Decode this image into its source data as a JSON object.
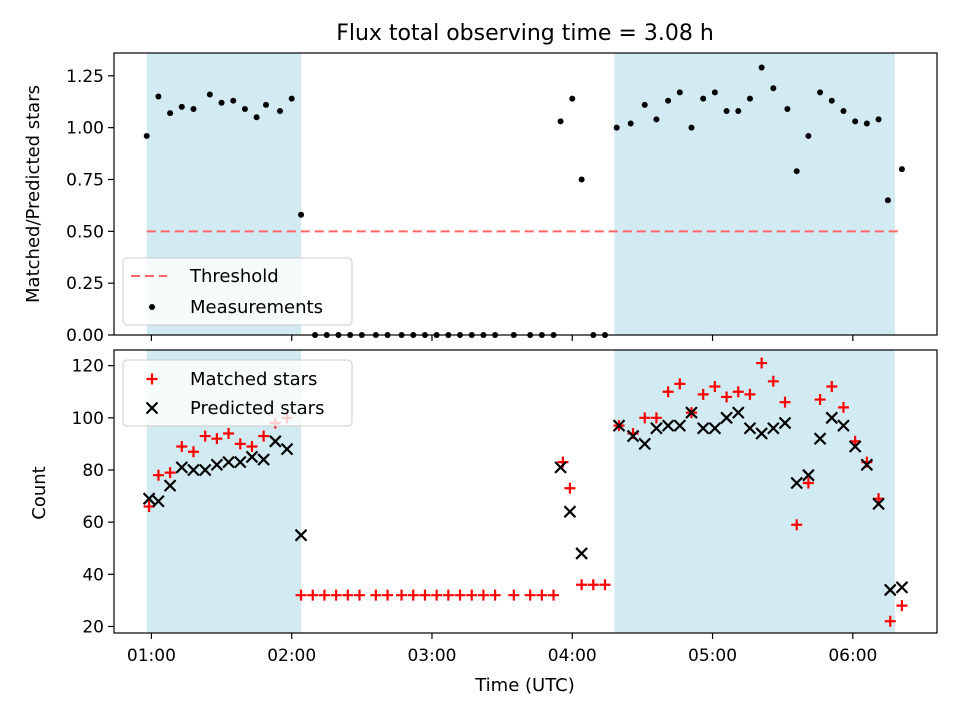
{
  "chart_data": [
    {
      "type": "scatter",
      "title": "Flux total observing time = 3.08 h",
      "xlabel": "",
      "ylabel": "Matched/Predicted stars",
      "xlim": [
        "00:44",
        "06:36"
      ],
      "ylim": [
        0,
        1.36
      ],
      "yticks": [
        0.0,
        0.25,
        0.5,
        0.75,
        1.0,
        1.25
      ],
      "ytick_labels": [
        "0.00",
        "0.25",
        "0.50",
        "0.75",
        "1.00",
        "1.25"
      ],
      "grid": false,
      "legend_position": "lower-left",
      "shaded_regions": [
        {
          "start": "00:58",
          "end": "02:04",
          "color": "#add8e6"
        },
        {
          "start": "04:18",
          "end": "06:18",
          "color": "#add8e6"
        }
      ],
      "threshold": {
        "name": "Threshold",
        "value": 0.5,
        "color": "#ff6666"
      },
      "series": [
        {
          "name": "Measurements",
          "color": "#000000",
          "points": [
            [
              "00:58",
              0.96
            ],
            [
              "01:03",
              1.15
            ],
            [
              "01:08",
              1.07
            ],
            [
              "01:13",
              1.1
            ],
            [
              "01:18",
              1.09
            ],
            [
              "01:25",
              1.16
            ],
            [
              "01:30",
              1.12
            ],
            [
              "01:35",
              1.13
            ],
            [
              "01:40",
              1.09
            ],
            [
              "01:45",
              1.05
            ],
            [
              "01:49",
              1.11
            ],
            [
              "01:55",
              1.08
            ],
            [
              "02:00",
              1.14
            ],
            [
              "02:04",
              0.58
            ],
            [
              "02:10",
              0.0
            ],
            [
              "02:15",
              0.0
            ],
            [
              "02:20",
              0.0
            ],
            [
              "02:25",
              0.0
            ],
            [
              "02:30",
              0.0
            ],
            [
              "02:36",
              0.0
            ],
            [
              "02:41",
              0.0
            ],
            [
              "02:47",
              0.0
            ],
            [
              "02:52",
              0.0
            ],
            [
              "02:57",
              0.0
            ],
            [
              "03:02",
              0.0
            ],
            [
              "03:07",
              0.0
            ],
            [
              "03:12",
              0.0
            ],
            [
              "03:17",
              0.0
            ],
            [
              "03:22",
              0.0
            ],
            [
              "03:27",
              0.0
            ],
            [
              "03:35",
              0.0
            ],
            [
              "03:42",
              0.0
            ],
            [
              "03:47",
              0.0
            ],
            [
              "03:52",
              0.0
            ],
            [
              "03:55",
              1.03
            ],
            [
              "04:00",
              1.14
            ],
            [
              "04:04",
              0.75
            ],
            [
              "04:09",
              0.0
            ],
            [
              "04:14",
              0.0
            ],
            [
              "04:19",
              1.0
            ],
            [
              "04:25",
              1.02
            ],
            [
              "04:31",
              1.11
            ],
            [
              "04:36",
              1.04
            ],
            [
              "04:41",
              1.13
            ],
            [
              "04:46",
              1.17
            ],
            [
              "04:51",
              1.0
            ],
            [
              "04:56",
              1.14
            ],
            [
              "05:01",
              1.17
            ],
            [
              "05:06",
              1.08
            ],
            [
              "05:11",
              1.08
            ],
            [
              "05:16",
              1.14
            ],
            [
              "05:21",
              1.29
            ],
            [
              "05:26",
              1.19
            ],
            [
              "05:32",
              1.09
            ],
            [
              "05:36",
              0.79
            ],
            [
              "05:41",
              0.96
            ],
            [
              "05:46",
              1.17
            ],
            [
              "05:51",
              1.13
            ],
            [
              "05:56",
              1.08
            ],
            [
              "06:01",
              1.03
            ],
            [
              "06:06",
              1.02
            ],
            [
              "06:11",
              1.04
            ],
            [
              "06:15",
              0.65
            ],
            [
              "06:21",
              0.8
            ]
          ]
        }
      ]
    },
    {
      "type": "scatter",
      "title": "",
      "xlabel": "Time (UTC)",
      "ylabel": "Count",
      "xlim": [
        "00:44",
        "06:36"
      ],
      "ylim": [
        17.5,
        126
      ],
      "xticks": [
        "01:00",
        "02:00",
        "03:00",
        "04:00",
        "05:00",
        "06:00"
      ],
      "yticks": [
        20,
        40,
        60,
        80,
        100,
        120
      ],
      "grid": false,
      "legend_position": "top-left",
      "shaded_regions": [
        {
          "start": "00:58",
          "end": "02:04",
          "color": "#add8e6"
        },
        {
          "start": "04:18",
          "end": "06:18",
          "color": "#add8e6"
        }
      ],
      "series": [
        {
          "name": "Matched stars",
          "marker": "+",
          "color": "#ff0000",
          "points": [
            [
              "00:59",
              66
            ],
            [
              "01:03",
              78
            ],
            [
              "01:08",
              79
            ],
            [
              "01:13",
              89
            ],
            [
              "01:18",
              87
            ],
            [
              "01:23",
              93
            ],
            [
              "01:28",
              92
            ],
            [
              "01:33",
              94
            ],
            [
              "01:38",
              90
            ],
            [
              "01:43",
              89
            ],
            [
              "01:48",
              93
            ],
            [
              "01:53",
              98
            ],
            [
              "01:58",
              100
            ],
            [
              "02:04",
              32
            ],
            [
              "02:09",
              32
            ],
            [
              "02:14",
              32
            ],
            [
              "02:19",
              32
            ],
            [
              "02:24",
              32
            ],
            [
              "02:29",
              32
            ],
            [
              "02:36",
              32
            ],
            [
              "02:41",
              32
            ],
            [
              "02:47",
              32
            ],
            [
              "02:52",
              32
            ],
            [
              "02:57",
              32
            ],
            [
              "03:02",
              32
            ],
            [
              "03:07",
              32
            ],
            [
              "03:12",
              32
            ],
            [
              "03:17",
              32
            ],
            [
              "03:22",
              32
            ],
            [
              "03:27",
              32
            ],
            [
              "03:35",
              32
            ],
            [
              "03:42",
              32
            ],
            [
              "03:47",
              32
            ],
            [
              "03:52",
              32
            ],
            [
              "03:56",
              83
            ],
            [
              "03:59",
              73
            ],
            [
              "04:04",
              36
            ],
            [
              "04:09",
              36
            ],
            [
              "04:14",
              36
            ],
            [
              "04:20",
              97
            ],
            [
              "04:26",
              94
            ],
            [
              "04:31",
              100
            ],
            [
              "04:36",
              100
            ],
            [
              "04:41",
              110
            ],
            [
              "04:46",
              113
            ],
            [
              "04:51",
              102
            ],
            [
              "04:56",
              109
            ],
            [
              "05:01",
              112
            ],
            [
              "05:06",
              108
            ],
            [
              "05:11",
              110
            ],
            [
              "05:16",
              109
            ],
            [
              "05:21",
              121
            ],
            [
              "05:26",
              114
            ],
            [
              "05:31",
              106
            ],
            [
              "05:36",
              59
            ],
            [
              "05:41",
              75
            ],
            [
              "05:46",
              107
            ],
            [
              "05:51",
              112
            ],
            [
              "05:56",
              104
            ],
            [
              "06:01",
              91
            ],
            [
              "06:06",
              83
            ],
            [
              "06:11",
              69
            ],
            [
              "06:16",
              22
            ],
            [
              "06:21",
              28
            ]
          ]
        },
        {
          "name": "Predicted stars",
          "marker": "x",
          "color": "#000000",
          "points": [
            [
              "00:59",
              69
            ],
            [
              "01:03",
              68
            ],
            [
              "01:08",
              74
            ],
            [
              "01:13",
              81
            ],
            [
              "01:18",
              80
            ],
            [
              "01:23",
              80
            ],
            [
              "01:28",
              82
            ],
            [
              "01:33",
              83
            ],
            [
              "01:38",
              83
            ],
            [
              "01:43",
              85
            ],
            [
              "01:48",
              84
            ],
            [
              "01:53",
              91
            ],
            [
              "01:58",
              88
            ],
            [
              "02:04",
              55
            ],
            [
              "03:55",
              81
            ],
            [
              "03:59",
              64
            ],
            [
              "04:04",
              48
            ],
            [
              "04:20",
              97
            ],
            [
              "04:26",
              93
            ],
            [
              "04:31",
              90
            ],
            [
              "04:36",
              96
            ],
            [
              "04:41",
              97
            ],
            [
              "04:46",
              97
            ],
            [
              "04:51",
              102
            ],
            [
              "04:56",
              96
            ],
            [
              "05:01",
              96
            ],
            [
              "05:06",
              100
            ],
            [
              "05:11",
              102
            ],
            [
              "05:16",
              96
            ],
            [
              "05:21",
              94
            ],
            [
              "05:26",
              96
            ],
            [
              "05:31",
              98
            ],
            [
              "05:36",
              75
            ],
            [
              "05:41",
              78
            ],
            [
              "05:46",
              92
            ],
            [
              "05:51",
              100
            ],
            [
              "05:56",
              97
            ],
            [
              "06:01",
              89
            ],
            [
              "06:06",
              82
            ],
            [
              "06:11",
              67
            ],
            [
              "06:16",
              34
            ],
            [
              "06:21",
              35
            ]
          ]
        }
      ]
    }
  ]
}
